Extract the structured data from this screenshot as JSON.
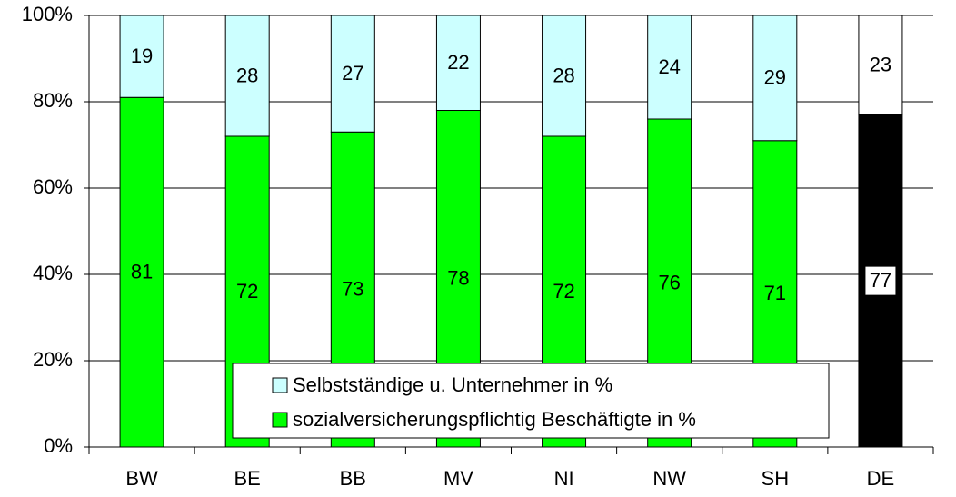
{
  "chart_data": {
    "type": "stacked_bar",
    "categories": [
      "BW",
      "BE",
      "BB",
      "MV",
      "NI",
      "NW",
      "SH",
      "DE"
    ],
    "series": [
      {
        "name": "sozialversicherungspflichtig Beschäftigte in %",
        "color": "#00ff00",
        "colors": [
          "#00ff00",
          "#00ff00",
          "#00ff00",
          "#00ff00",
          "#00ff00",
          "#00ff00",
          "#00ff00",
          "#000000"
        ],
        "values": [
          81,
          72,
          73,
          78,
          72,
          76,
          71,
          77
        ]
      },
      {
        "name": "Selbstständige u. Unternehmer in %",
        "color": "#ccffff",
        "colors": [
          "#ccffff",
          "#ccffff",
          "#ccffff",
          "#ccffff",
          "#ccffff",
          "#ccffff",
          "#ccffff",
          "#ffffff"
        ],
        "values": [
          19,
          28,
          27,
          22,
          28,
          24,
          29,
          23
        ]
      }
    ],
    "ylim": [
      0,
      100
    ],
    "yticks": [
      {
        "value": 0,
        "label": "0%"
      },
      {
        "value": 20,
        "label": "20%"
      },
      {
        "value": 40,
        "label": "40%"
      },
      {
        "value": 60,
        "label": "60%"
      },
      {
        "value": 80,
        "label": "80%"
      },
      {
        "value": 100,
        "label": "100%"
      }
    ],
    "grid": true
  }
}
